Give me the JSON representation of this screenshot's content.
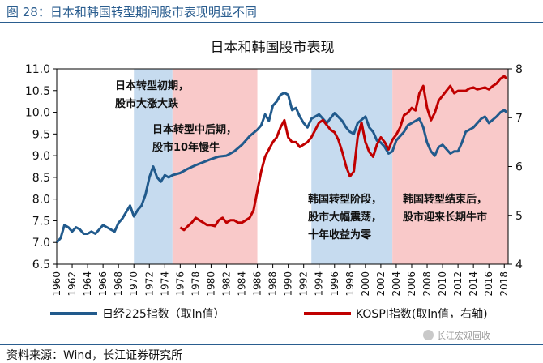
{
  "figure_title": "图 28：日本和韩国转型期间股市表现明显不同",
  "source": "资料来源：Wind，长江证券研究所",
  "watermark": "长江宏观固收",
  "colors": {
    "title": "#2a5d8f",
    "nikkei": "#215a8c",
    "kospi": "#c00000",
    "band_blue": "#c6dbef",
    "band_red": "#f9c9c9"
  },
  "chart_data": {
    "type": "line",
    "title": "日本和韩国股市表现",
    "xlim": [
      1960,
      2018.5
    ],
    "ylim_left": [
      6.5,
      11.0
    ],
    "ylim_right": [
      4,
      8
    ],
    "left_ticks": [
      "6.5",
      "7.0",
      "7.5",
      "8.0",
      "8.5",
      "9.0",
      "9.5",
      "10.0",
      "10.5",
      "11.0"
    ],
    "right_ticks": [
      "4",
      "5",
      "6",
      "7",
      "8"
    ],
    "x_ticks": [
      "1960",
      "1962",
      "1964",
      "1966",
      "1968",
      "1970",
      "1972",
      "1974",
      "1976",
      "1978",
      "1980",
      "1982",
      "1984",
      "1986",
      "1988",
      "1990",
      "1992",
      "1994",
      "1996",
      "1998",
      "2000",
      "2002",
      "2004",
      "2006",
      "2008",
      "2010",
      "2012",
      "2014",
      "2016",
      "2018"
    ],
    "bands": [
      {
        "from": 1970,
        "to": 1975,
        "kind": "blue"
      },
      {
        "from": 1975,
        "to": 1986,
        "kind": "red"
      },
      {
        "from": 1993,
        "to": 2003.5,
        "kind": "blue"
      },
      {
        "from": 2003.5,
        "to": 2018.5,
        "kind": "red"
      }
    ],
    "annotations": [
      {
        "lines": [
          "日本转型初期，",
          "股市大涨大跌"
        ]
      },
      {
        "lines": [
          "日本转型中后期，",
          "股市10年慢牛"
        ]
      },
      {
        "lines": [
          "韩国转型阶段，",
          "股市大幅震荡，",
          "十年收益为零"
        ]
      },
      {
        "lines": [
          "韩国转型结束后，",
          "股市迎来长期牛市"
        ]
      }
    ],
    "series": [
      {
        "name": "日经225指数（取ln值）",
        "axis": "left",
        "x": [
          1960,
          1960.5,
          1961,
          1961.5,
          1962,
          1962.5,
          1963,
          1963.5,
          1964,
          1964.5,
          1965,
          1965.5,
          1966,
          1966.5,
          1967,
          1967.5,
          1968,
          1968.5,
          1969,
          1969.5,
          1970,
          1970.5,
          1971,
          1971.5,
          1972,
          1972.5,
          1973,
          1973.5,
          1974,
          1974.5,
          1975,
          1976,
          1977,
          1978,
          1979,
          1980,
          1981,
          1982,
          1983,
          1984,
          1985,
          1986,
          1986.5,
          1987,
          1987.5,
          1988,
          1988.5,
          1989,
          1989.5,
          1990,
          1990.5,
          1991,
          1991.5,
          1992,
          1992.5,
          1993,
          1994,
          1995,
          1996,
          1997,
          1997.5,
          1998,
          1998.5,
          1999,
          2000,
          2000.5,
          2001,
          2001.5,
          2002,
          2002.5,
          2003,
          2003.5,
          2004,
          2005,
          2005.5,
          2006,
          2007,
          2007.5,
          2008,
          2008.5,
          2009,
          2009.5,
          2010,
          2011,
          2011.5,
          2012,
          2012.5,
          2013,
          2014,
          2015,
          2015.5,
          2016,
          2017,
          2017.5,
          2018,
          2018.3
        ],
        "y": [
          7.0,
          7.1,
          7.4,
          7.35,
          7.25,
          7.35,
          7.3,
          7.2,
          7.2,
          7.25,
          7.2,
          7.3,
          7.4,
          7.35,
          7.3,
          7.25,
          7.45,
          7.55,
          7.7,
          7.85,
          7.6,
          7.75,
          7.85,
          8.1,
          8.5,
          8.75,
          8.5,
          8.4,
          8.55,
          8.5,
          8.55,
          8.6,
          8.7,
          8.78,
          8.85,
          8.92,
          8.98,
          9.0,
          9.1,
          9.25,
          9.45,
          9.6,
          9.7,
          9.95,
          9.8,
          10.15,
          10.25,
          10.4,
          10.45,
          10.4,
          10.05,
          10.1,
          9.9,
          9.75,
          9.65,
          9.85,
          9.95,
          9.75,
          9.98,
          9.8,
          9.65,
          9.55,
          9.5,
          9.75,
          9.9,
          9.65,
          9.55,
          9.35,
          9.3,
          9.2,
          9.05,
          9.1,
          9.35,
          9.55,
          9.7,
          9.75,
          9.85,
          9.65,
          9.3,
          9.1,
          9.0,
          9.2,
          9.25,
          9.05,
          9.1,
          9.1,
          9.3,
          9.55,
          9.65,
          9.85,
          9.9,
          9.75,
          9.9,
          10.0,
          10.05,
          10.0
        ]
      },
      {
        "name": "KOSPI指数(取ln值，右轴)",
        "axis": "right",
        "x": [
          1976,
          1976.5,
          1977,
          1977.5,
          1978,
          1978.5,
          1979,
          1979.5,
          1980,
          1980.5,
          1981,
          1981.5,
          1982,
          1982.5,
          1983,
          1983.5,
          1984,
          1984.5,
          1985,
          1985.5,
          1986,
          1986.5,
          1987,
          1987.5,
          1988,
          1988.5,
          1989,
          1989.5,
          1990,
          1990.5,
          1991,
          1991.5,
          1992,
          1992.5,
          1993,
          1993.5,
          1994,
          1994.5,
          1995,
          1995.5,
          1996,
          1996.5,
          1997,
          1997.5,
          1998,
          1998.5,
          1999,
          1999.5,
          2000,
          2000.5,
          2001,
          2001.5,
          2002,
          2002.5,
          2003,
          2003.5,
          2004,
          2004.5,
          2005,
          2005.5,
          2006,
          2006.5,
          2007,
          2007.5,
          2008,
          2008.5,
          2009,
          2009.5,
          2010,
          2010.5,
          2011,
          2011.5,
          2012,
          2012.5,
          2013,
          2013.5,
          2014,
          2014.5,
          2015,
          2015.5,
          2016,
          2016.5,
          2017,
          2017.5,
          2018,
          2018.3
        ],
        "y": [
          4.75,
          4.7,
          4.78,
          4.85,
          4.95,
          4.9,
          4.85,
          4.8,
          4.8,
          4.78,
          4.9,
          4.95,
          4.85,
          4.9,
          4.9,
          4.85,
          4.85,
          4.9,
          4.95,
          5.1,
          5.5,
          5.9,
          6.2,
          6.35,
          6.5,
          6.6,
          6.8,
          6.95,
          6.6,
          6.5,
          6.5,
          6.4,
          6.45,
          6.5,
          6.6,
          6.75,
          6.9,
          6.95,
          6.85,
          6.75,
          6.7,
          6.55,
          6.3,
          6.0,
          5.8,
          5.9,
          6.6,
          6.9,
          6.5,
          6.3,
          6.2,
          6.45,
          6.6,
          6.5,
          6.35,
          6.55,
          6.65,
          6.8,
          7.05,
          7.1,
          7.2,
          7.15,
          7.5,
          7.65,
          7.2,
          6.95,
          7.1,
          7.35,
          7.45,
          7.55,
          7.65,
          7.5,
          7.55,
          7.55,
          7.55,
          7.6,
          7.62,
          7.58,
          7.6,
          7.62,
          7.58,
          7.65,
          7.7,
          7.8,
          7.85,
          7.8
        ]
      }
    ]
  }
}
